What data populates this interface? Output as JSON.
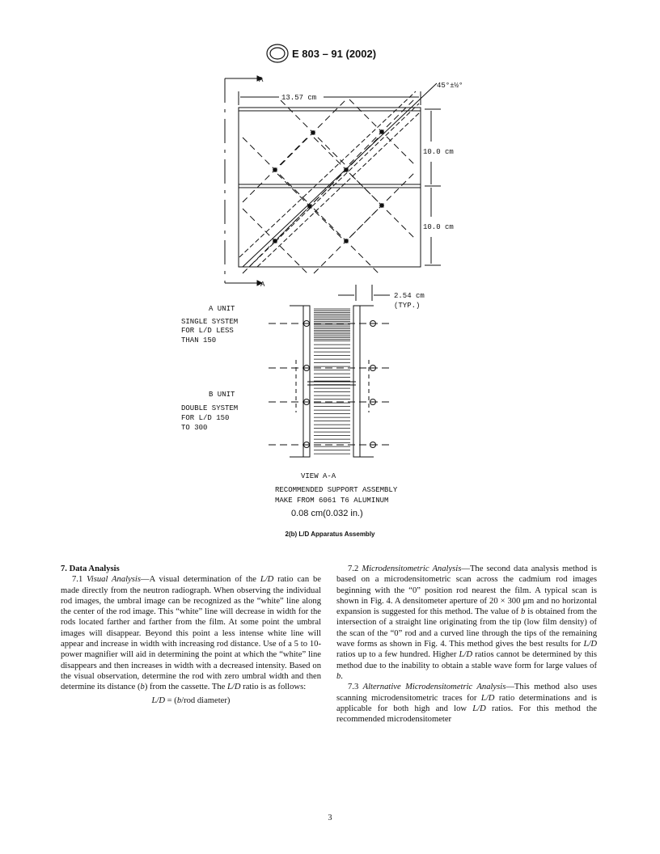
{
  "header": {
    "designation": "E 803 – 91 (2002)"
  },
  "figure": {
    "labels": [
      "A",
      "13.57 cm",
      "45°±½°",
      "10.0 cm",
      "10.0 cm",
      "A",
      "2.54 cm",
      "(TYP.)",
      "A UNIT",
      "SINGLE SYSTEM",
      "FOR L/D LESS",
      "THAN 150",
      "B UNIT",
      "DOUBLE SYSTEM",
      "FOR  L/D 150",
      "TO 300",
      "VIEW A-A",
      "RECOMMENDED SUPPORT ASSEMBLY",
      "MAKE FROM 6061 T6 ALUMINUM",
      "0.08 cm(0.032 in.)"
    ],
    "caption": "2(b) L/D Apparatus Assembly"
  },
  "body": {
    "heading": "7. Data Analysis",
    "left": [
      {
        "runs": [
          {
            "text": "7.1 "
          },
          {
            "text": "Visual Analysis",
            "italic": true
          },
          {
            "text": "—A visual determination of the "
          },
          {
            "text": "L/D",
            "italic": true
          },
          {
            "text": " ratio can be made directly from the neutron radiograph. When observing the individual rod images, the umbral image can be recognized as the “white” line along the center of the rod image. This “white” line will decrease in width for the rods located farther and farther from the film. At some point the umbral images will disappear. Beyond this point a less intense white line will appear and increase in width with increasing rod distance. Use of a 5 to 10-power magnifier will aid in determining the point at which the “white” line disappears and then increases in width with a decreased intensity. Based on the visual observation, determine the rod with zero umbral width and then determine its distance ("
          },
          {
            "text": "b",
            "italic": true
          },
          {
            "text": ") from the cassette. The "
          },
          {
            "text": "L/D",
            "italic": true
          },
          {
            "text": " ratio is as follows:"
          }
        ]
      }
    ],
    "equation": {
      "runs": [
        {
          "text": "L/D",
          "italic": true
        },
        {
          "text": " = ("
        },
        {
          "text": "b",
          "italic": true
        },
        {
          "text": "/rod diameter)"
        }
      ]
    },
    "right": [
      {
        "runs": [
          {
            "text": "7.2 "
          },
          {
            "text": "Microdensitometric Analysis",
            "italic": true
          },
          {
            "text": "—The second data analysis method is based on a microdensitometric scan across the cadmium rod images beginning with the “0” position rod nearest the film. A typical scan is shown in Fig. 4. A densitometer aperture of 20 × 300 μm and no horizontal expansion is suggested for this method. The value of "
          },
          {
            "text": "b",
            "italic": true
          },
          {
            "text": " is obtained from the intersection of a straight line originating from the tip (low film density) of the scan of the “0” rod and a curved line through the tips of the remaining wave forms as shown in Fig. 4. This method gives the best results for "
          },
          {
            "text": "L/D",
            "italic": true
          },
          {
            "text": " ratios up to a few hundred. Higher "
          },
          {
            "text": "L/D",
            "italic": true
          },
          {
            "text": " ratios cannot be determined by this method due to the inability to obtain a stable wave form for large values of "
          },
          {
            "text": "b",
            "italic": true
          },
          {
            "text": "."
          }
        ]
      },
      {
        "runs": [
          {
            "text": "7.3 "
          },
          {
            "text": "Alternative Microdensitometric Analysis",
            "italic": true
          },
          {
            "text": "—This method also uses scanning microdensitometric traces for "
          },
          {
            "text": "L/D",
            "italic": true
          },
          {
            "text": " ratio determinations and is applicable for both high and low "
          },
          {
            "text": "L/D",
            "italic": true
          },
          {
            "text": " ratios. For this method the recommended microdensitometer"
          }
        ]
      }
    ]
  },
  "footer": {
    "page": "3"
  }
}
